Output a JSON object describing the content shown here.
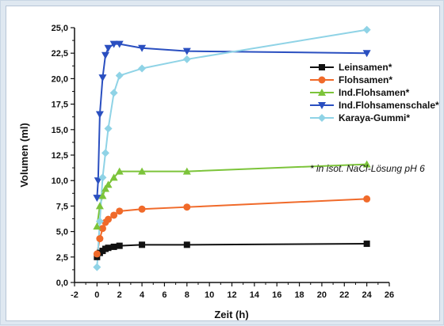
{
  "chart_data": {
    "type": "line",
    "xlabel": "Zeit (h)",
    "ylabel": "Volumen (ml)",
    "xlim": [
      -2,
      26
    ],
    "ylim": [
      0,
      25
    ],
    "xticks": [
      -2,
      0,
      2,
      4,
      6,
      8,
      10,
      12,
      14,
      16,
      18,
      20,
      22,
      24,
      26
    ],
    "xtick_labels": [
      "-2",
      "0",
      "2",
      "4",
      "6",
      "8",
      "10",
      "12",
      "14",
      "16",
      "18",
      "20",
      "22",
      "24",
      "26"
    ],
    "yticks": [
      0,
      2.5,
      5,
      7.5,
      10,
      12.5,
      15,
      17.5,
      20,
      22.5,
      25
    ],
    "ytick_labels": [
      "0,0",
      "2,5",
      "5,0",
      "7,5",
      "10,0",
      "12,5",
      "15,0",
      "17,5",
      "20,0",
      "22,5",
      "25,0"
    ],
    "grid": false,
    "legend_position": "right",
    "annotation": "* in isot. NaCl-Lösung pH 6",
    "series": [
      {
        "name": "Leinsamen*",
        "color": "#111111",
        "marker": "square",
        "x": [
          0,
          0.25,
          0.5,
          0.75,
          1,
          1.5,
          2,
          4,
          8,
          24
        ],
        "y": [
          2.5,
          2.9,
          3.1,
          3.3,
          3.4,
          3.5,
          3.6,
          3.7,
          3.7,
          3.8
        ]
      },
      {
        "name": "Flohsamen*",
        "color": "#f06a2a",
        "marker": "circle",
        "x": [
          0,
          0.25,
          0.5,
          0.75,
          1,
          1.5,
          2,
          4,
          8,
          24
        ],
        "y": [
          2.8,
          4.3,
          5.3,
          5.9,
          6.2,
          6.6,
          7.0,
          7.2,
          7.4,
          8.2
        ]
      },
      {
        "name": "Ind.Flohsamen*",
        "color": "#7cc43a",
        "marker": "triangle-up",
        "x": [
          0,
          0.25,
          0.5,
          0.75,
          1,
          1.5,
          2,
          4,
          8,
          24
        ],
        "y": [
          5.5,
          7.5,
          8.5,
          9.2,
          9.6,
          10.3,
          10.9,
          10.9,
          10.9,
          11.6
        ]
      },
      {
        "name": "Ind.Flohsamenschale*",
        "color": "#2a4fc0",
        "marker": "triangle-down",
        "x": [
          0,
          0.1,
          0.25,
          0.5,
          0.75,
          1,
          1.5,
          2,
          4,
          8,
          24
        ],
        "y": [
          8.3,
          10.0,
          16.5,
          20.1,
          22.3,
          23.0,
          23.4,
          23.4,
          23.0,
          22.7,
          22.5
        ]
      },
      {
        "name": "Karaya-Gummi*",
        "color": "#8fd3e6",
        "marker": "diamond",
        "x": [
          0,
          0.25,
          0.5,
          0.75,
          1,
          1.5,
          2,
          4,
          8,
          24
        ],
        "y": [
          1.5,
          6.0,
          10.3,
          12.7,
          15.1,
          18.6,
          20.3,
          21.0,
          21.9,
          24.8
        ]
      }
    ]
  }
}
